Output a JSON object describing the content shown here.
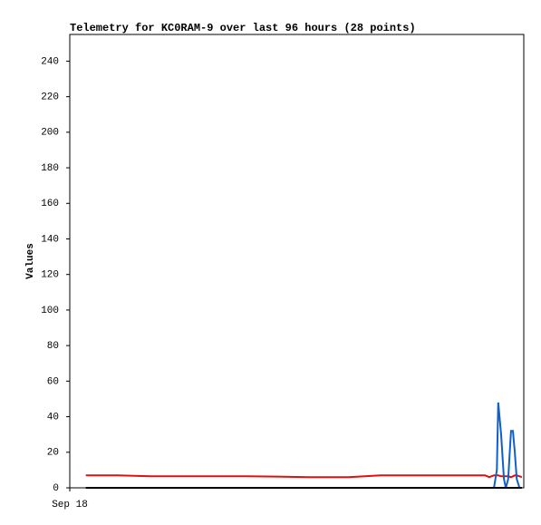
{
  "chart_data": {
    "type": "line",
    "title": "Telemetry for KC0RAM-9 over last 96 hours (28 points)",
    "ylabel": "Values",
    "x": [
      3.4,
      10.2,
      17.1,
      23.8,
      30.5,
      37.2,
      43.9,
      50.6,
      59.0,
      65.7,
      72.4,
      79.1,
      84.9,
      87.8,
      88.7,
      89.7,
      90.3,
      90.6,
      91.2,
      91.8,
      92.2,
      92.7,
      93.3,
      93.7,
      94.1,
      94.5,
      95.1,
      95.6
    ],
    "xlim": [
      0,
      96
    ],
    "xticks": [
      {
        "value": 0,
        "label": "Sep 18"
      }
    ],
    "ylim": [
      0,
      255
    ],
    "yticks": [
      0,
      20,
      40,
      60,
      80,
      100,
      120,
      140,
      160,
      180,
      200,
      220,
      240
    ],
    "series": [
      {
        "color": "#e01010",
        "values": [
          7,
          7,
          6.5,
          6.5,
          6.5,
          6.5,
          6.3,
          6,
          6,
          7,
          7,
          7,
          7,
          7,
          6,
          7,
          7,
          7,
          6.5,
          6.5,
          6.5,
          6.5,
          6,
          6.5,
          7,
          7,
          6.5,
          6
        ]
      },
      {
        "color": "#1060c8",
        "values": [
          0,
          0,
          0,
          0,
          0,
          0,
          0,
          0,
          0,
          0,
          0,
          0,
          0,
          0,
          0,
          0,
          10,
          48,
          30,
          5,
          0,
          5,
          32,
          32,
          20,
          5,
          0,
          0
        ]
      },
      {
        "color": "#000000",
        "values": [
          0,
          0,
          0,
          0,
          0,
          0,
          0,
          0,
          0,
          0,
          0,
          0,
          0,
          0,
          0,
          0,
          0,
          0,
          0,
          0,
          0,
          0,
          0,
          0,
          0,
          0,
          0,
          0
        ]
      }
    ]
  }
}
